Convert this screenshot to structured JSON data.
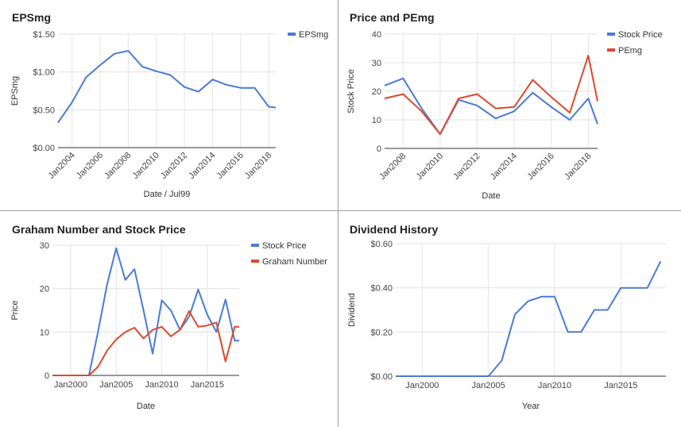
{
  "chart_data": [
    {
      "type": "line",
      "title": "EPSmg",
      "xlabel": "Date / Jul99",
      "ylabel": "EPSmg",
      "x": [
        2003,
        2004,
        2005,
        2006,
        2007,
        2008,
        2009,
        2010,
        2011,
        2012,
        2013,
        2014,
        2015,
        2016,
        2017,
        2018,
        2018.5
      ],
      "xlim": [
        2003,
        2018.5
      ],
      "ylim": [
        0,
        1.5
      ],
      "y_ticks": [
        0,
        0.5,
        1.0,
        1.5
      ],
      "y_tick_labels": [
        "$0.00",
        "$0.50",
        "$1.00",
        "$1.50"
      ],
      "x_ticks": [
        2004,
        2006,
        2008,
        2010,
        2012,
        2014,
        2016,
        2018
      ],
      "x_tick_labels": [
        "Jan2004",
        "Jan2006",
        "Jan2008",
        "Jan2010",
        "Jan2012",
        "Jan2014",
        "Jan2016",
        "Jan2018"
      ],
      "x_tick_rotation": -45,
      "legend_position": "top-right",
      "grid": true,
      "series": [
        {
          "name": "EPSmg",
          "color": "#4a7bd5",
          "values": [
            0.33,
            0.6,
            0.93,
            1.09,
            1.24,
            1.28,
            1.07,
            1.01,
            0.96,
            0.8,
            0.74,
            0.9,
            0.83,
            0.79,
            0.79,
            0.54,
            0.53
          ]
        }
      ]
    },
    {
      "type": "line",
      "title": "Price and PEmg",
      "xlabel": "Date",
      "ylabel": "Stock Price",
      "x": [
        2007,
        2008,
        2009,
        2010,
        2011,
        2012,
        2013,
        2014,
        2015,
        2016,
        2017,
        2018,
        2018.5
      ],
      "xlim": [
        2007,
        2018.5
      ],
      "ylim": [
        0,
        40
      ],
      "y_ticks": [
        0,
        10,
        20,
        30,
        40
      ],
      "y_tick_labels": [
        "0",
        "10",
        "20",
        "30",
        "40"
      ],
      "x_ticks": [
        2008,
        2010,
        2012,
        2014,
        2016,
        2018
      ],
      "x_tick_labels": [
        "Jan2008",
        "Jan2010",
        "Jan2012",
        "Jan2014",
        "Jan2016",
        "Jan2018"
      ],
      "x_tick_rotation": -45,
      "legend_position": "top-right",
      "grid": true,
      "series": [
        {
          "name": "Stock Price",
          "color": "#4a7bd5",
          "values": [
            22,
            24.5,
            14,
            5,
            17,
            15,
            10.5,
            13,
            19.5,
            14.5,
            10,
            17.5,
            8.5
          ]
        },
        {
          "name": "PEmg",
          "color": "#dc4a2c",
          "values": [
            17.5,
            19,
            13,
            5,
            17.5,
            19,
            14,
            14.5,
            24,
            18,
            12.5,
            32.5,
            16.5
          ]
        }
      ]
    },
    {
      "type": "line",
      "title": "Graham Number and Stock Price",
      "xlabel": "Date",
      "ylabel": "Price",
      "x": [
        1998,
        1999,
        2000,
        2001,
        2002,
        2003,
        2004,
        2005,
        2006,
        2007,
        2008,
        2009,
        2010,
        2011,
        2012,
        2013,
        2014,
        2015,
        2016,
        2017,
        2018,
        2018.5
      ],
      "xlim": [
        1998,
        2018.5
      ],
      "ylim": [
        0,
        30
      ],
      "y_ticks": [
        0,
        10,
        20,
        30
      ],
      "y_tick_labels": [
        "0",
        "10",
        "20",
        "30"
      ],
      "x_ticks": [
        2000,
        2005,
        2010,
        2015
      ],
      "x_tick_labels": [
        "Jan2000",
        "Jan2005",
        "Jan2010",
        "Jan2015"
      ],
      "legend_position": "top-right",
      "grid": true,
      "series": [
        {
          "name": "Stock Price",
          "color": "#4a7bd5",
          "values": [
            0,
            0,
            0,
            0,
            0,
            10,
            21,
            29.3,
            22,
            24.5,
            15,
            5,
            17.3,
            15,
            10.5,
            13.5,
            19.8,
            14,
            10,
            17.5,
            8,
            8
          ]
        },
        {
          "name": "Graham Number",
          "color": "#dc4a2c",
          "values": [
            0,
            0,
            0,
            0,
            0,
            2,
            5.7,
            8.3,
            10,
            11,
            8.5,
            10.5,
            11.2,
            9,
            10.5,
            14.8,
            11.2,
            11.5,
            12.2,
            3.2,
            11.2,
            11.2
          ]
        }
      ]
    },
    {
      "type": "line",
      "title": "Dividend History",
      "xlabel": "Year",
      "ylabel": "Dividend",
      "x": [
        1998,
        1999,
        2000,
        2001,
        2002,
        2003,
        2004,
        2005,
        2006,
        2007,
        2008,
        2009,
        2010,
        2011,
        2012,
        2013,
        2014,
        2015,
        2016,
        2017,
        2018
      ],
      "xlim": [
        1998,
        2018.4
      ],
      "ylim": [
        0,
        0.6
      ],
      "y_ticks": [
        0,
        0.2,
        0.4,
        0.6
      ],
      "y_tick_labels": [
        "$0.00",
        "$0.20",
        "$0.40",
        "$0.60"
      ],
      "x_ticks": [
        2000,
        2005,
        2010,
        2015
      ],
      "x_tick_labels": [
        "Jan2000",
        "Jan2005",
        "Jan2010",
        "Jan2015"
      ],
      "legend_position": "none",
      "grid": true,
      "series": [
        {
          "color": "#4a7bd5",
          "values": [
            0,
            0,
            0,
            0,
            0,
            0,
            0,
            0,
            0.07,
            0.28,
            0.34,
            0.36,
            0.36,
            0.2,
            0.2,
            0.3,
            0.3,
            0.4,
            0.4,
            0.4,
            0.52
          ]
        }
      ]
    }
  ]
}
